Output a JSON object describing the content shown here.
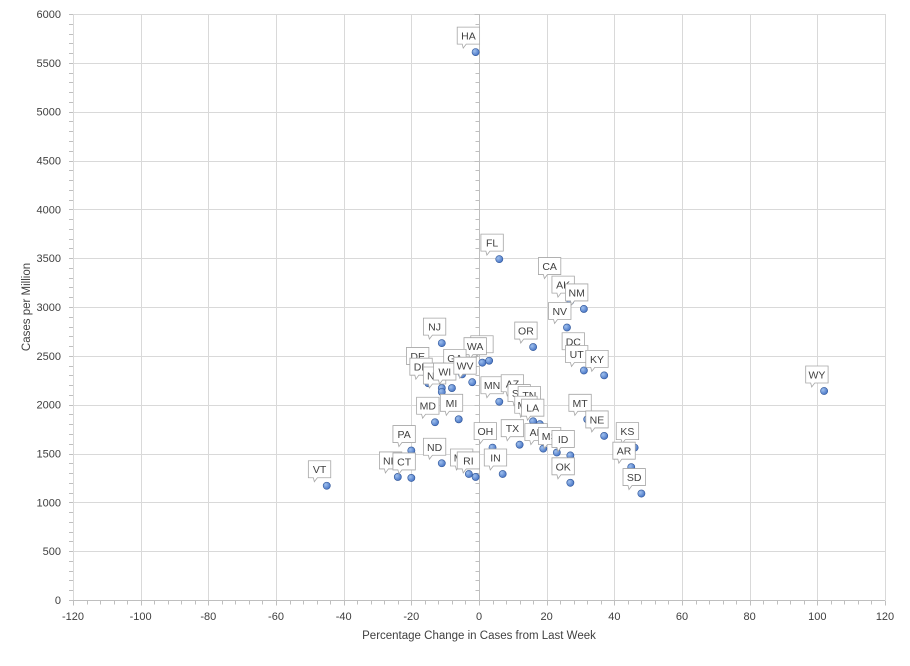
{
  "chart_data": {
    "type": "scatter",
    "xlabel": "Percentage Change  in Cases from Last Week",
    "ylabel": "Cases per Million",
    "xlim": [
      -120,
      120
    ],
    "ylim": [
      0,
      6000
    ],
    "x_ticks": [
      -120,
      -100,
      -80,
      -60,
      -40,
      -20,
      0,
      20,
      40,
      60,
      80,
      100,
      120
    ],
    "y_ticks": [
      0,
      500,
      1000,
      1500,
      2000,
      2500,
      3000,
      3500,
      4000,
      4500,
      5000,
      5500,
      6000
    ],
    "grid": true,
    "marker_color": "#4472c4",
    "points": [
      {
        "label": "HA",
        "x": -1,
        "y": 5610
      },
      {
        "label": "FL",
        "x": 6,
        "y": 3490
      },
      {
        "label": "CA",
        "x": 23,
        "y": 3250
      },
      {
        "label": "AK",
        "x": 27,
        "y": 3060
      },
      {
        "label": "NM",
        "x": 31,
        "y": 2980
      },
      {
        "label": "NV",
        "x": 26,
        "y": 2790
      },
      {
        "label": "OR",
        "x": 16,
        "y": 2590
      },
      {
        "label": "DC",
        "x": 30,
        "y": 2480
      },
      {
        "label": "UT",
        "x": 31,
        "y": 2350
      },
      {
        "label": "KY",
        "x": 37,
        "y": 2300
      },
      {
        "label": "NJ",
        "x": -11,
        "y": 2630
      },
      {
        "label": "IL",
        "x": 3,
        "y": 2450
      },
      {
        "label": "WA",
        "x": 1,
        "y": 2430
      },
      {
        "label": "DE",
        "x": -16,
        "y": 2330
      },
      {
        "label": "GA",
        "x": -5,
        "y": 2310
      },
      {
        "label": "DE",
        "x": -15,
        "y": 2220
      },
      {
        "label": "NY",
        "x": -11,
        "y": 2170
      },
      {
        "label": "NC",
        "x": -11,
        "y": 2130
      },
      {
        "label": "WI",
        "x": -8,
        "y": 2170
      },
      {
        "label": "WV",
        "x": -2,
        "y": 2230
      },
      {
        "label": "MN",
        "x": 6,
        "y": 2030
      },
      {
        "label": "AZ",
        "x": 12,
        "y": 2050
      },
      {
        "label": "SC",
        "x": 14,
        "y": 1950
      },
      {
        "label": "TN",
        "x": 17,
        "y": 1930
      },
      {
        "label": "MO",
        "x": 16,
        "y": 1830
      },
      {
        "label": "LA",
        "x": 18,
        "y": 1800
      },
      {
        "label": "MD",
        "x": -13,
        "y": 1820
      },
      {
        "label": "MI",
        "x": -6,
        "y": 1850
      },
      {
        "label": "MT",
        "x": 32,
        "y": 1850
      },
      {
        "label": "NE",
        "x": 37,
        "y": 1680
      },
      {
        "label": "KS",
        "x": 46,
        "y": 1560
      },
      {
        "label": "AR",
        "x": 45,
        "y": 1360
      },
      {
        "label": "SD",
        "x": 48,
        "y": 1090
      },
      {
        "label": "TX",
        "x": 12,
        "y": 1590
      },
      {
        "label": "AL",
        "x": 19,
        "y": 1550
      },
      {
        "label": "MS",
        "x": 23,
        "y": 1510
      },
      {
        "label": "ID",
        "x": 27,
        "y": 1480
      },
      {
        "label": "OK",
        "x": 27,
        "y": 1200
      },
      {
        "label": "OH",
        "x": 4,
        "y": 1560
      },
      {
        "label": "IN",
        "x": 7,
        "y": 1290
      },
      {
        "label": "ME",
        "x": -3,
        "y": 1290
      },
      {
        "label": "RI",
        "x": -1,
        "y": 1260
      },
      {
        "label": "PA",
        "x": -20,
        "y": 1530
      },
      {
        "label": "ND",
        "x": -11,
        "y": 1400
      },
      {
        "label": "NH",
        "x": -24,
        "y": 1260
      },
      {
        "label": "CT",
        "x": -20,
        "y": 1250
      },
      {
        "label": "VT",
        "x": -45,
        "y": 1170
      },
      {
        "label": "WY",
        "x": 102,
        "y": 2140
      }
    ]
  }
}
